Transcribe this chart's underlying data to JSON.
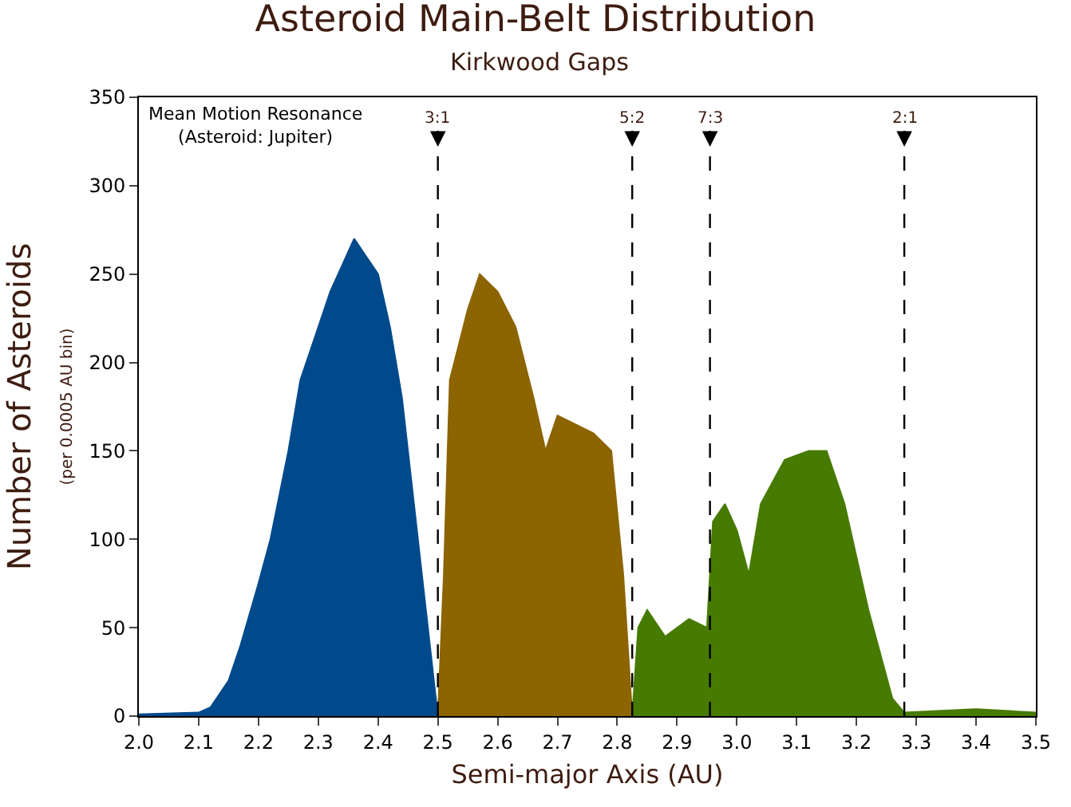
{
  "chart_data": {
    "type": "area",
    "title": "Asteroid Main-Belt Distribution",
    "subtitle": "Kirkwood Gaps",
    "xlabel": "Semi-major Axis (AU)",
    "ylabel": "Number of Asteroids\n(per 0.0005 AU bin)",
    "series": [
      {
        "color": "#004a8c",
        "x": [
          2.0,
          2.1,
          2.12,
          2.15,
          2.17,
          2.2,
          2.22,
          2.25,
          2.27,
          2.3,
          2.32,
          2.34,
          2.36,
          2.38,
          2.4,
          2.42,
          2.44,
          2.46,
          2.48,
          2.5
        ],
        "values": [
          1,
          2,
          5,
          20,
          40,
          75,
          100,
          150,
          190,
          220,
          240,
          255,
          270,
          260,
          250,
          220,
          180,
          120,
          60,
          0
        ]
      },
      {
        "color": "#8c6400",
        "x": [
          2.5,
          2.51,
          2.52,
          2.55,
          2.57,
          2.6,
          2.63,
          2.66,
          2.68,
          2.7,
          2.73,
          2.76,
          2.79,
          2.81,
          2.825
        ],
        "values": [
          0,
          80,
          190,
          230,
          250,
          240,
          220,
          180,
          150,
          170,
          165,
          160,
          150,
          80,
          0
        ]
      },
      {
        "color": "#477a00",
        "x": [
          2.825,
          2.835,
          2.85,
          2.88,
          2.92,
          2.95,
          2.96,
          2.98,
          3.0,
          3.02,
          3.04,
          3.08,
          3.12,
          3.15,
          3.18,
          3.22,
          3.26,
          3.28,
          3.4,
          3.5
        ],
        "values": [
          0,
          50,
          60,
          45,
          55,
          50,
          110,
          120,
          105,
          80,
          120,
          145,
          150,
          150,
          120,
          60,
          10,
          2,
          4,
          2
        ]
      }
    ],
    "xlim": [
      2.0,
      3.5
    ],
    "xticks": [
      {
        "value": 2.0,
        "label": "2.0"
      },
      2.1,
      2.2,
      2.3,
      2.4,
      2.5,
      2.6,
      2.7,
      2.8,
      2.9,
      {
        "value": 3.0,
        "label": "3.0"
      },
      3.1,
      3.2,
      3.3,
      3.4,
      3.5
    ],
    "ylim": [
      0,
      350
    ],
    "yticks": [
      0,
      50,
      100,
      150,
      200,
      250,
      300,
      350
    ],
    "ref_lines": [
      {
        "axis": "x",
        "value": 2.5,
        "color": "#000000",
        "line_style": "dashed"
      },
      {
        "axis": "x",
        "value": 2.825,
        "color": "#000000",
        "line_style": "dashed"
      },
      {
        "axis": "x",
        "value": 2.955,
        "color": "#000000",
        "line_style": "dashed"
      },
      {
        "axis": "x",
        "value": 3.28,
        "color": "#000000",
        "line_style": "dashed"
      }
    ],
    "annotations": [
      "Mean Motion Resonance\n(Asteroid: Jupiter)",
      {
        "text": "3:1",
        "x": 2.5,
        "y": 322
      },
      {
        "text": "5:2",
        "x": 2.825,
        "y": 322
      },
      {
        "text": "7:3",
        "x": 2.955,
        "y": 322
      },
      {
        "text": "2:1",
        "x": 3.28,
        "y": 322
      }
    ]
  }
}
